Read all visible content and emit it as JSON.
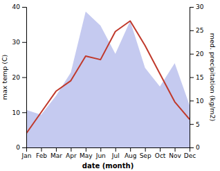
{
  "chart_data": {
    "type": "line",
    "categories": [
      "Jan",
      "Feb",
      "Mar",
      "Apr",
      "May",
      "Jun",
      "Jul",
      "Aug",
      "Sep",
      "Oct",
      "Nov",
      "Dec"
    ],
    "xlabel": "date (month)",
    "ylabel": "max temp (C)",
    "y2label": "med. precipitation (kg/m2)",
    "ylim": [
      0,
      40
    ],
    "yticks": [
      0,
      10,
      20,
      30,
      40
    ],
    "y2lim": [
      0,
      30
    ],
    "y2ticks": [
      0,
      5,
      10,
      15,
      20,
      25,
      30
    ],
    "grid": false,
    "series": [
      {
        "type": "line",
        "color": "#c0392b",
        "values": [
          4,
          10,
          16,
          19,
          26,
          25,
          33,
          36,
          29,
          21,
          13,
          8
        ]
      },
      {
        "type": "area",
        "axis": "y2",
        "color": "#c5caf0",
        "values": [
          8,
          7,
          11,
          16,
          29,
          26,
          20,
          27,
          17,
          13,
          18,
          9
        ]
      }
    ]
  }
}
